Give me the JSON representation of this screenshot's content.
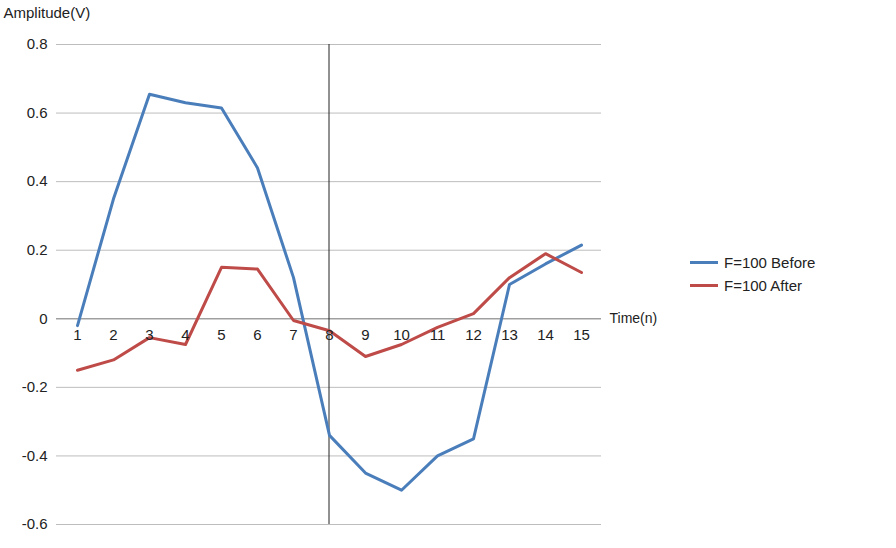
{
  "chart_data": {
    "type": "line",
    "y_label": "Amplitude(V)",
    "x_label": "Time(n)",
    "categories": [
      "1",
      "2",
      "3",
      "4",
      "5",
      "6",
      "7",
      "8",
      "9",
      "10",
      "11",
      "12",
      "13",
      "14",
      "15"
    ],
    "series": [
      {
        "name": "F=100 Before",
        "color": "#4a7ebb",
        "values": [
          -0.02,
          0.35,
          0.655,
          0.63,
          0.615,
          0.44,
          0.12,
          -0.34,
          -0.45,
          -0.5,
          -0.4,
          -0.35,
          0.1,
          0.16,
          0.215
        ]
      },
      {
        "name": "F=100 After",
        "color": "#be4b48",
        "values": [
          -0.15,
          -0.12,
          -0.055,
          -0.075,
          0.15,
          0.145,
          -0.005,
          -0.035,
          -0.11,
          -0.075,
          -0.025,
          0.015,
          0.12,
          0.19,
          0.135
        ]
      }
    ],
    "ylim": [
      -0.6,
      0.8
    ],
    "yticks": [
      -0.6,
      -0.4,
      -0.2,
      0,
      0.2,
      0.4,
      0.6,
      0.8
    ],
    "grid": true,
    "legend": "right"
  }
}
